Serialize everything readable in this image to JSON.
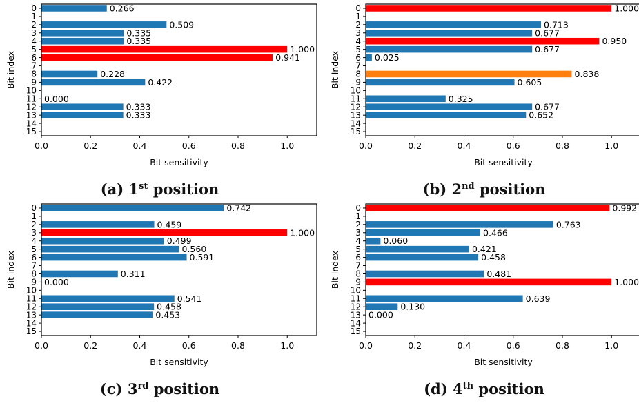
{
  "colors": {
    "default": "#1f77b4",
    "highlight": "#ff0000",
    "secondary": "#ff7f0e"
  },
  "chart_data": [
    {
      "type": "bar",
      "orientation": "horizontal",
      "caption": {
        "label": "(a)",
        "ordinal": "1",
        "suffix": "st",
        "word": "position"
      },
      "xlabel": "Bit sensitivity",
      "ylabel": "Bit index",
      "xlim": [
        0,
        1.12
      ],
      "xticks": [
        "0.0",
        "0.2",
        "0.4",
        "0.6",
        "0.8",
        "1.0"
      ],
      "categories": [
        "0",
        "1",
        "2",
        "3",
        "4",
        "5",
        "6",
        "7",
        "8",
        "9",
        "10",
        "11",
        "12",
        "13",
        "14",
        "15"
      ],
      "values": [
        0.266,
        null,
        0.509,
        0.335,
        0.335,
        1.0,
        0.941,
        null,
        0.228,
        0.422,
        null,
        0.0,
        0.333,
        0.333,
        null,
        null
      ],
      "labels": [
        "0.266",
        "",
        "0.509",
        "0.335",
        "0.335",
        "1.000",
        "0.941",
        "",
        "0.228",
        "0.422",
        "",
        "0.000",
        "0.333",
        "0.333",
        "",
        ""
      ],
      "bar_colors": [
        "default",
        "default",
        "default",
        "default",
        "default",
        "highlight",
        "highlight",
        "default",
        "default",
        "default",
        "default",
        "default",
        "default",
        "default",
        "default",
        "default"
      ]
    },
    {
      "type": "bar",
      "orientation": "horizontal",
      "caption": {
        "label": "(b)",
        "ordinal": "2",
        "suffix": "nd",
        "word": "position"
      },
      "xlabel": "Bit sensitivity",
      "ylabel": "Bit index",
      "xlim": [
        0,
        1.12
      ],
      "xticks": [
        "0.0",
        "0.2",
        "0.4",
        "0.6",
        "0.8",
        "1.0"
      ],
      "categories": [
        "0",
        "1",
        "2",
        "3",
        "4",
        "5",
        "6",
        "7",
        "8",
        "9",
        "10",
        "11",
        "12",
        "13",
        "14",
        "15"
      ],
      "values": [
        1.0,
        null,
        0.713,
        0.677,
        0.95,
        0.677,
        0.025,
        null,
        0.838,
        0.605,
        null,
        0.325,
        0.677,
        0.652,
        null,
        null
      ],
      "labels": [
        "1.000",
        "",
        "0.713",
        "0.677",
        "0.950",
        "0.677",
        "0.025",
        "",
        "0.838",
        "0.605",
        "",
        "0.325",
        "0.677",
        "0.652",
        "",
        ""
      ],
      "bar_colors": [
        "highlight",
        "default",
        "default",
        "default",
        "highlight",
        "default",
        "default",
        "default",
        "secondary",
        "default",
        "default",
        "default",
        "default",
        "default",
        "default",
        "default"
      ]
    },
    {
      "type": "bar",
      "orientation": "horizontal",
      "caption": {
        "label": "(c)",
        "ordinal": "3",
        "suffix": "rd",
        "word": "position"
      },
      "xlabel": "Bit sensitivity",
      "ylabel": "Bit index",
      "xlim": [
        0,
        1.12
      ],
      "xticks": [
        "0.0",
        "0.2",
        "0.4",
        "0.6",
        "0.8",
        "1.0"
      ],
      "categories": [
        "0",
        "1",
        "2",
        "3",
        "4",
        "5",
        "6",
        "7",
        "8",
        "9",
        "10",
        "11",
        "12",
        "13",
        "14",
        "15"
      ],
      "values": [
        0.742,
        null,
        0.459,
        1.0,
        0.499,
        0.56,
        0.591,
        null,
        0.311,
        0.0,
        null,
        0.541,
        0.458,
        0.453,
        null,
        null
      ],
      "labels": [
        "0.742",
        "",
        "0.459",
        "1.000",
        "0.499",
        "0.560",
        "0.591",
        "",
        "0.311",
        "0.000",
        "",
        "0.541",
        "0.458",
        "0.453",
        "",
        ""
      ],
      "bar_colors": [
        "default",
        "default",
        "default",
        "highlight",
        "default",
        "default",
        "default",
        "default",
        "default",
        "default",
        "default",
        "default",
        "default",
        "default",
        "default",
        "default"
      ]
    },
    {
      "type": "bar",
      "orientation": "horizontal",
      "caption": {
        "label": "(d)",
        "ordinal": "4",
        "suffix": "th",
        "word": "position"
      },
      "xlabel": "Bit sensitivity",
      "ylabel": "Bit index",
      "xlim": [
        0,
        1.12
      ],
      "xticks": [
        "0.0",
        "0.2",
        "0.4",
        "0.6",
        "0.8",
        "1.0"
      ],
      "categories": [
        "0",
        "1",
        "2",
        "3",
        "4",
        "5",
        "6",
        "7",
        "8",
        "9",
        "10",
        "11",
        "12",
        "13",
        "14",
        "15"
      ],
      "values": [
        0.992,
        null,
        0.763,
        0.466,
        0.06,
        0.421,
        0.458,
        null,
        0.481,
        1.0,
        null,
        0.639,
        0.13,
        0.0,
        null,
        null
      ],
      "labels": [
        "0.992",
        "",
        "0.763",
        "0.466",
        "0.060",
        "0.421",
        "0.458",
        "",
        "0.481",
        "1.000",
        "",
        "0.639",
        "0.130",
        "0.000",
        "",
        ""
      ],
      "bar_colors": [
        "highlight",
        "default",
        "default",
        "default",
        "default",
        "default",
        "default",
        "default",
        "default",
        "highlight",
        "default",
        "default",
        "default",
        "default",
        "default",
        "default"
      ]
    }
  ]
}
